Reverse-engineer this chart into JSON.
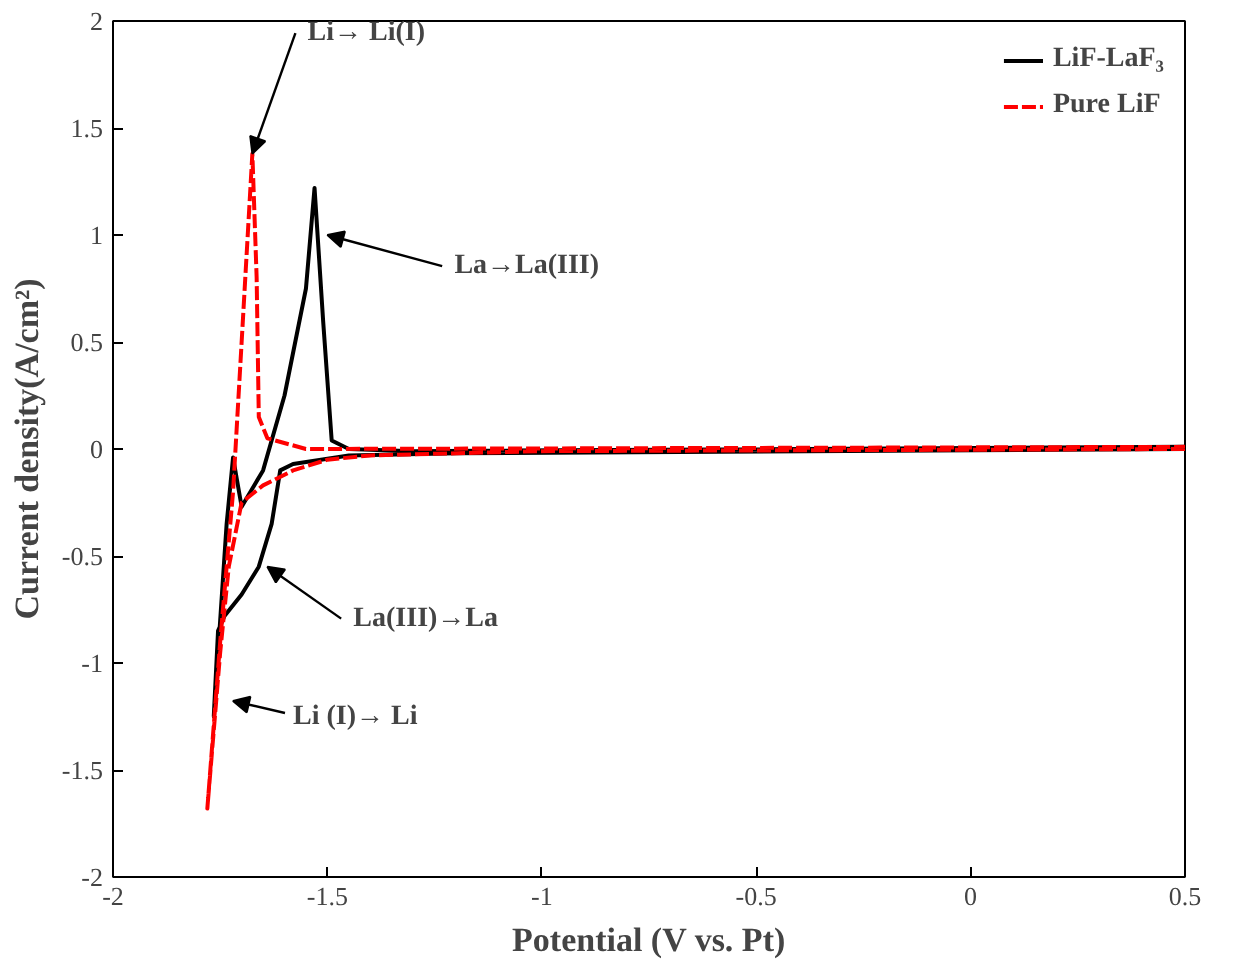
{
  "chart_data": {
    "type": "line",
    "xlabel": "Potential (V vs. Pt)",
    "ylabel": "Current density(A/cm²)",
    "xlim": [
      -2,
      0.5
    ],
    "ylim": [
      -2,
      2
    ],
    "xticks": [
      -2,
      -1.5,
      -1,
      -0.5,
      0,
      0.5
    ],
    "yticks": [
      -2,
      -1.5,
      -1,
      -0.5,
      0,
      0.5,
      1,
      1.5,
      2
    ],
    "grid": false,
    "legend": "top right",
    "series": [
      {
        "name": "LiF-LaF₃",
        "color": "#000000",
        "line_style": "solid",
        "x": [
          0.5,
          -1.2,
          -1.45,
          -1.58,
          -1.61,
          -1.63,
          -1.66,
          -1.7,
          -1.74,
          -1.755,
          -1.765,
          -1.75,
          -1.735,
          -1.72,
          -1.7,
          -1.65,
          -1.6,
          -1.55,
          -1.53,
          -1.51,
          -1.49,
          -1.45,
          -1.3,
          0.5
        ],
        "values": [
          0.0,
          -0.02,
          -0.03,
          -0.07,
          -0.1,
          -0.35,
          -0.55,
          -0.68,
          -0.78,
          -0.85,
          -1.25,
          -0.8,
          -0.35,
          -0.04,
          -0.27,
          -0.1,
          0.25,
          0.75,
          1.22,
          0.6,
          0.04,
          0.0,
          -0.01,
          0.01
        ]
      },
      {
        "name": "Pure LiF",
        "color": "#ff0000",
        "line_style": "dashed",
        "x": [
          0.5,
          -1.0,
          -1.4,
          -1.5,
          -1.58,
          -1.65,
          -1.7,
          -1.73,
          -1.75,
          -1.78,
          -1.75,
          -1.72,
          -1.7,
          -1.675,
          -1.665,
          -1.66,
          -1.64,
          -1.55,
          0.5
        ],
        "values": [
          0.0,
          -0.01,
          -0.03,
          -0.05,
          -0.1,
          -0.17,
          -0.25,
          -0.55,
          -0.95,
          -1.68,
          -0.9,
          -0.2,
          0.5,
          1.38,
          0.8,
          0.15,
          0.05,
          0.0,
          0.01
        ]
      }
    ],
    "annotations": [
      {
        "text": "Li→ Li(I)",
        "x": -1.675,
        "y": 1.38
      },
      {
        "text": "La→La(III)",
        "x": -1.5,
        "y": 1.0
      },
      {
        "text": "La(III)→La",
        "x": -1.64,
        "y": -0.55
      },
      "Li (I)→ Li"
    ]
  }
}
